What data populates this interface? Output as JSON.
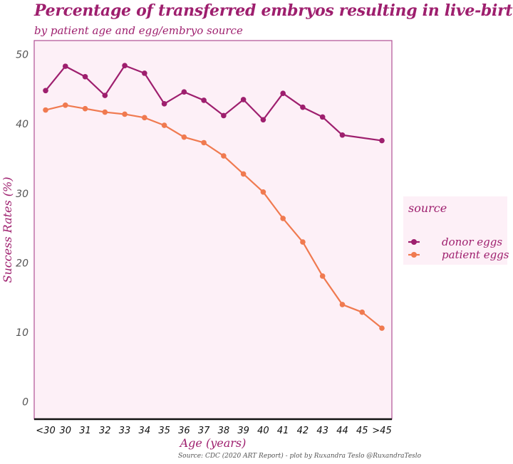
{
  "title": "Percentage of transferred embryos resulting in live-birth",
  "subtitle": "by patient age and egg/embryo source",
  "caption": "Source: CDC (2020 ART Report) - plot by Ruxandra Teslo @RuxandraTeslo",
  "colors": {
    "donor": "#9e1f6e",
    "patient": "#f07a50",
    "panel_bg": "#fdf0f7",
    "panel_border": "#b04f94",
    "text_accent": "#9e1f6e"
  },
  "chart_data": {
    "type": "line",
    "title": "Percentage of transferred embryos resulting in live-birth",
    "subtitle": "by patient age and egg/embryo source",
    "xlabel": "Age (years)",
    "ylabel": "Success Rates (%)",
    "categories": [
      "<30",
      "30",
      "31",
      "32",
      "33",
      "34",
      "35",
      "36",
      "37",
      "38",
      "39",
      "40",
      "41",
      "42",
      "43",
      "44",
      "45",
      ">45"
    ],
    "ylim": [
      -2.5,
      52
    ],
    "yticks": [
      0,
      10,
      20,
      30,
      40,
      50
    ],
    "grid": false,
    "legend": {
      "title": "source",
      "placement": "right"
    },
    "series": [
      {
        "name": "donor eggs",
        "color": "#9e1f6e",
        "x": [
          "<30",
          "30",
          "31",
          "32",
          "33",
          "34",
          "35",
          "36",
          "37",
          "38",
          "39",
          "40",
          "41",
          "42",
          "43",
          "44",
          ">45"
        ],
        "values": [
          44.8,
          48.3,
          46.8,
          44.1,
          48.4,
          47.3,
          42.9,
          44.6,
          43.4,
          41.2,
          43.5,
          40.6,
          44.4,
          42.4,
          41.0,
          38.4,
          37.6
        ]
      },
      {
        "name": "patient eggs",
        "color": "#f07a50",
        "x": [
          "<30",
          "30",
          "31",
          "32",
          "33",
          "34",
          "35",
          "36",
          "37",
          "38",
          "39",
          "40",
          "41",
          "42",
          "43",
          "44",
          "45",
          ">45"
        ],
        "values": [
          42.0,
          42.7,
          42.2,
          41.7,
          41.4,
          40.9,
          39.8,
          38.1,
          37.3,
          35.4,
          32.8,
          30.2,
          26.4,
          23.0,
          18.1,
          14.0,
          12.9,
          10.6
        ]
      }
    ]
  }
}
